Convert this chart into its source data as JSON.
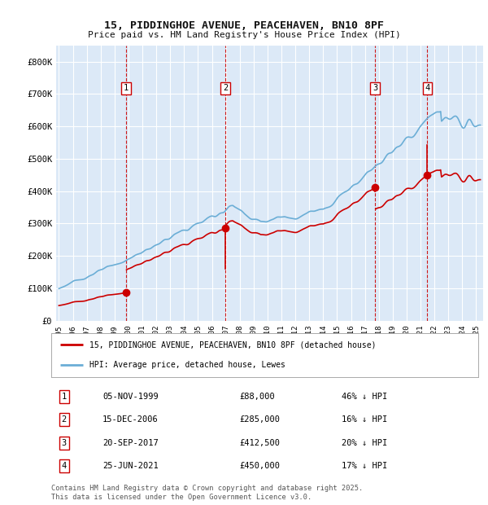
{
  "title": "15, PIDDINGHOE AVENUE, PEACEHAVEN, BN10 8PF",
  "subtitle": "Price paid vs. HM Land Registry's House Price Index (HPI)",
  "background_color": "#ffffff",
  "plot_bg_color": "#dce9f7",
  "grid_color": "#ffffff",
  "ylim": [
    0,
    850000
  ],
  "yticks": [
    0,
    100000,
    200000,
    300000,
    400000,
    500000,
    600000,
    700000,
    800000
  ],
  "ytick_labels": [
    "£0",
    "£100K",
    "£200K",
    "£300K",
    "£400K",
    "£500K",
    "£600K",
    "£700K",
    "£800K"
  ],
  "xlim_start": 1994.8,
  "xlim_end": 2025.5,
  "hpi_color": "#6baed6",
  "price_color": "#cc0000",
  "purchases": [
    {
      "label": 1,
      "date": 1999.84,
      "price": 88000
    },
    {
      "label": 2,
      "date": 2006.96,
      "price": 285000
    },
    {
      "label": 3,
      "date": 2017.72,
      "price": 412500
    },
    {
      "label": 4,
      "date": 2021.48,
      "price": 450000
    }
  ],
  "vline_color": "#cc0000",
  "legend_line1": "15, PIDDINGHOE AVENUE, PEACEHAVEN, BN10 8PF (detached house)",
  "legend_line2": "HPI: Average price, detached house, Lewes",
  "table_data": [
    {
      "num": 1,
      "date": "05-NOV-1999",
      "price": "£88,000",
      "hpi": "46% ↓ HPI"
    },
    {
      "num": 2,
      "date": "15-DEC-2006",
      "price": "£285,000",
      "hpi": "16% ↓ HPI"
    },
    {
      "num": 3,
      "date": "20-SEP-2017",
      "price": "£412,500",
      "hpi": "20% ↓ HPI"
    },
    {
      "num": 4,
      "date": "25-JUN-2021",
      "price": "£450,000",
      "hpi": "17% ↓ HPI"
    }
  ],
  "footer": "Contains HM Land Registry data © Crown copyright and database right 2025.\nThis data is licensed under the Open Government Licence v3.0."
}
